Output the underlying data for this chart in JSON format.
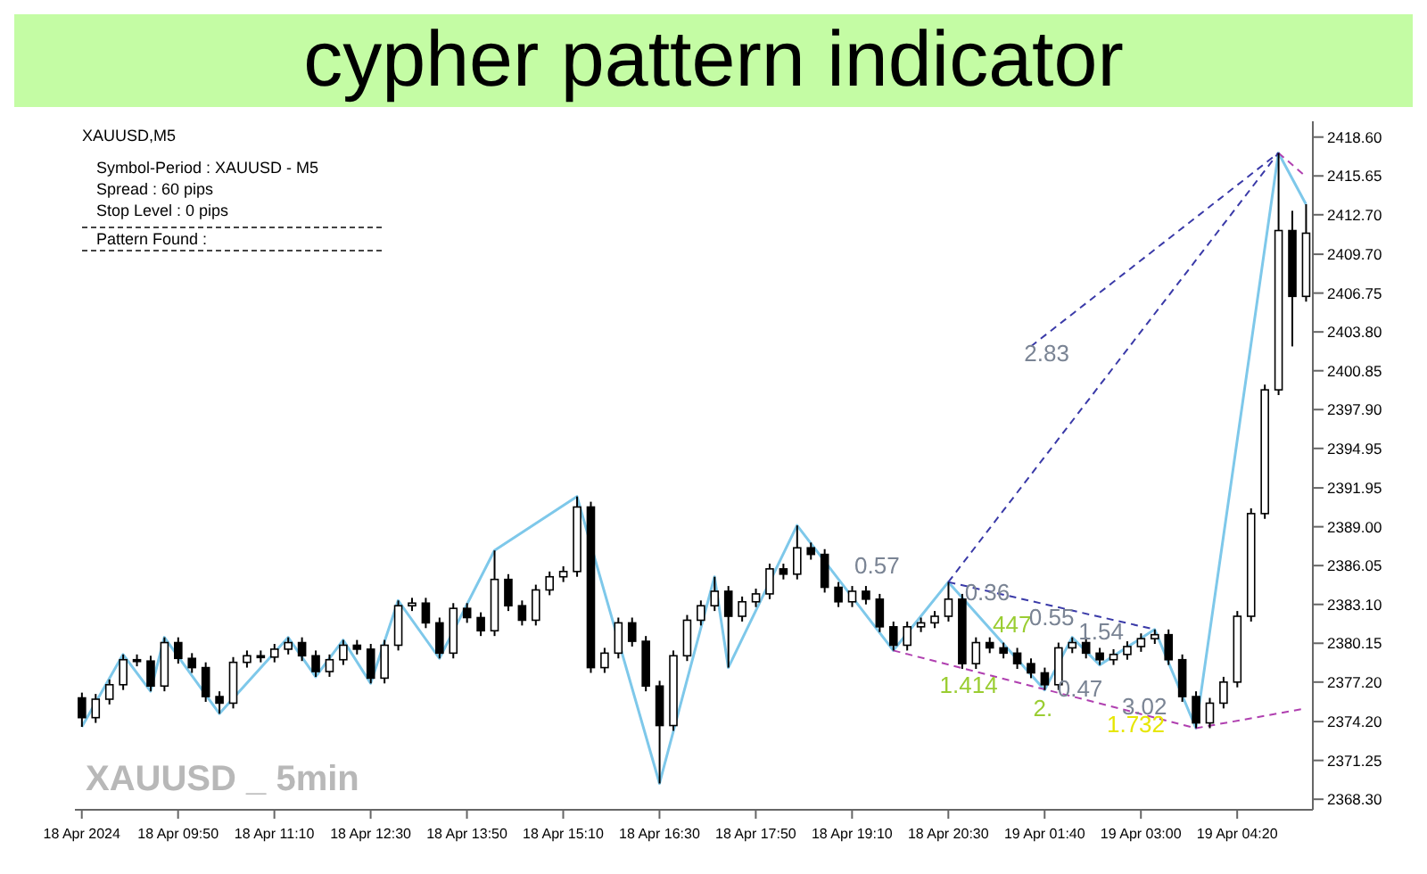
{
  "chart_data": {
    "type": "candlestick",
    "title": "cypher pattern indicator",
    "annotations": [
      "XAUUSD,M5",
      "Symbol-Period : XAUUSD - M5",
      "Spread : 60 pips",
      "Stop Level : 0 pips",
      "Pattern Found :",
      "XAUUSD _ 5min",
      "2.83",
      "0.57",
      "0.36",
      "447",
      "0.55",
      "1.54",
      "1.414",
      "0.47",
      "2.",
      "3.02",
      "1.732"
    ],
    "categories": [
      "18 Apr 2024",
      null,
      null,
      null,
      null,
      null,
      null,
      "18 Apr 09:50",
      null,
      null,
      null,
      null,
      null,
      null,
      "18 Apr 11:10",
      null,
      null,
      null,
      null,
      null,
      null,
      "18 Apr 12:30",
      null,
      null,
      null,
      null,
      null,
      null,
      "18 Apr 13:50",
      null,
      null,
      null,
      null,
      null,
      null,
      "18 Apr 15:10",
      null,
      null,
      null,
      null,
      null,
      null,
      "18 Apr 16:30",
      null,
      null,
      null,
      null,
      null,
      null,
      "18 Apr 17:50",
      null,
      null,
      null,
      null,
      null,
      null,
      "18 Apr 19:10",
      null,
      null,
      null,
      null,
      null,
      null,
      "18 Apr 20:30",
      null,
      null,
      null,
      null,
      null,
      null,
      "19 Apr 01:40",
      null,
      null,
      null,
      null,
      null,
      null,
      "19 Apr 03:00",
      null,
      null,
      null,
      null,
      null,
      null,
      "19 Apr 04:20",
      null,
      null,
      null,
      null,
      null
    ],
    "ohlc": [
      [
        2376.0,
        2376.4,
        2373.8,
        2374.5
      ],
      [
        2374.5,
        2376.3,
        2374.1,
        2375.9
      ],
      [
        2375.9,
        2377.4,
        2375.5,
        2377.0
      ],
      [
        2377.0,
        2379.3,
        2376.6,
        2378.9
      ],
      [
        2378.9,
        2379.3,
        2378.4,
        2378.8
      ],
      [
        2378.8,
        2379.2,
        2376.5,
        2376.9
      ],
      [
        2376.9,
        2380.6,
        2376.5,
        2380.2
      ],
      [
        2380.2,
        2380.6,
        2378.6,
        2379.0
      ],
      [
        2379.0,
        2379.4,
        2377.9,
        2378.3
      ],
      [
        2378.3,
        2378.7,
        2375.7,
        2376.1
      ],
      [
        2376.1,
        2376.5,
        2374.8,
        2375.6
      ],
      [
        2375.6,
        2379.1,
        2375.2,
        2378.7
      ],
      [
        2378.7,
        2379.6,
        2378.3,
        2379.2
      ],
      [
        2379.2,
        2379.6,
        2378.7,
        2379.1
      ],
      [
        2379.1,
        2380.1,
        2378.7,
        2379.7
      ],
      [
        2379.7,
        2380.6,
        2379.3,
        2380.2
      ],
      [
        2380.2,
        2380.6,
        2378.8,
        2379.2
      ],
      [
        2379.2,
        2379.6,
        2377.6,
        2378.0
      ],
      [
        2378.0,
        2379.3,
        2377.6,
        2378.9
      ],
      [
        2378.9,
        2380.4,
        2378.5,
        2380.0
      ],
      [
        2380.0,
        2380.4,
        2379.3,
        2379.7
      ],
      [
        2379.7,
        2380.1,
        2377.1,
        2377.5
      ],
      [
        2377.5,
        2380.4,
        2377.1,
        2380.0
      ],
      [
        2380.0,
        2383.4,
        2379.6,
        2383.0
      ],
      [
        2383.0,
        2383.6,
        2382.6,
        2383.2
      ],
      [
        2383.2,
        2383.6,
        2381.3,
        2381.7
      ],
      [
        2381.7,
        2382.1,
        2379.0,
        2379.4
      ],
      [
        2379.4,
        2383.2,
        2379.0,
        2382.8
      ],
      [
        2382.8,
        2383.2,
        2381.7,
        2382.1
      ],
      [
        2382.1,
        2382.5,
        2380.7,
        2381.1
      ],
      [
        2381.1,
        2387.2,
        2380.7,
        2385.0
      ],
      [
        2385.0,
        2385.4,
        2382.6,
        2383.0
      ],
      [
        2383.0,
        2383.4,
        2381.5,
        2381.9
      ],
      [
        2381.9,
        2384.6,
        2381.5,
        2384.2
      ],
      [
        2384.2,
        2385.6,
        2383.8,
        2385.2
      ],
      [
        2385.2,
        2386.0,
        2384.8,
        2385.6
      ],
      [
        2385.6,
        2391.3,
        2385.2,
        2390.5
      ],
      [
        2390.5,
        2390.9,
        2377.9,
        2378.3
      ],
      [
        2378.3,
        2379.8,
        2377.9,
        2379.4
      ],
      [
        2379.4,
        2382.1,
        2379.0,
        2381.7
      ],
      [
        2381.7,
        2382.1,
        2379.9,
        2380.3
      ],
      [
        2380.3,
        2380.7,
        2376.5,
        2376.9
      ],
      [
        2376.9,
        2377.3,
        2369.5,
        2373.9
      ],
      [
        2373.9,
        2379.6,
        2373.5,
        2379.2
      ],
      [
        2379.2,
        2382.3,
        2378.8,
        2381.9
      ],
      [
        2381.9,
        2383.4,
        2381.5,
        2383.0
      ],
      [
        2383.0,
        2385.2,
        2382.6,
        2384.1
      ],
      [
        2384.1,
        2384.5,
        2378.3,
        2382.2
      ],
      [
        2382.2,
        2383.7,
        2381.8,
        2383.3
      ],
      [
        2383.3,
        2384.3,
        2382.9,
        2383.9
      ],
      [
        2383.9,
        2386.2,
        2383.5,
        2385.8
      ],
      [
        2385.8,
        2386.2,
        2385.0,
        2385.4
      ],
      [
        2385.4,
        2389.1,
        2385.0,
        2387.4
      ],
      [
        2387.4,
        2387.8,
        2386.5,
        2386.9
      ],
      [
        2386.9,
        2387.3,
        2384.0,
        2384.4
      ],
      [
        2384.4,
        2384.8,
        2382.9,
        2383.3
      ],
      [
        2383.3,
        2384.5,
        2382.9,
        2384.1
      ],
      [
        2384.1,
        2384.5,
        2383.1,
        2383.5
      ],
      [
        2383.5,
        2383.9,
        2381.0,
        2381.4
      ],
      [
        2381.4,
        2381.8,
        2379.6,
        2380.0
      ],
      [
        2380.0,
        2381.8,
        2379.6,
        2381.4
      ],
      [
        2381.4,
        2382.1,
        2381.0,
        2381.7
      ],
      [
        2381.7,
        2382.6,
        2381.3,
        2382.2
      ],
      [
        2382.2,
        2384.8,
        2381.8,
        2383.5
      ],
      [
        2383.5,
        2383.9,
        2378.2,
        2378.6
      ],
      [
        2378.6,
        2380.6,
        2378.2,
        2380.2
      ],
      [
        2380.2,
        2380.6,
        2379.4,
        2379.8
      ],
      [
        2379.8,
        2380.2,
        2379.0,
        2379.4
      ],
      [
        2379.4,
        2379.8,
        2378.2,
        2378.6
      ],
      [
        2378.6,
        2379.0,
        2377.5,
        2377.9
      ],
      [
        2377.9,
        2378.3,
        2376.6,
        2377.0
      ],
      [
        2377.0,
        2380.2,
        2376.6,
        2379.8
      ],
      [
        2379.8,
        2380.6,
        2379.4,
        2380.2
      ],
      [
        2380.2,
        2380.6,
        2379.0,
        2379.4
      ],
      [
        2379.4,
        2379.8,
        2378.5,
        2378.9
      ],
      [
        2378.9,
        2379.7,
        2378.5,
        2379.3
      ],
      [
        2379.3,
        2380.3,
        2378.9,
        2379.9
      ],
      [
        2379.9,
        2380.9,
        2379.5,
        2380.5
      ],
      [
        2380.5,
        2381.2,
        2380.1,
        2380.8
      ],
      [
        2380.8,
        2381.2,
        2378.5,
        2378.9
      ],
      [
        2378.9,
        2379.3,
        2375.7,
        2376.1
      ],
      [
        2376.1,
        2376.5,
        2373.7,
        2374.1
      ],
      [
        2374.1,
        2376.0,
        2373.7,
        2375.6
      ],
      [
        2375.6,
        2377.6,
        2375.2,
        2377.2
      ],
      [
        2377.2,
        2382.6,
        2376.8,
        2382.2
      ],
      [
        2382.2,
        2390.4,
        2381.8,
        2390.0
      ],
      [
        2390.0,
        2399.8,
        2389.6,
        2399.4
      ],
      [
        2399.4,
        2417.4,
        2399.0,
        2411.5
      ],
      [
        2411.5,
        2413.0,
        2402.7,
        2406.5
      ],
      [
        2406.5,
        2413.5,
        2406.1,
        2411.3
      ]
    ],
    "series": [
      {
        "type": "line",
        "color": "#7ec8ea",
        "line_style": "solid",
        "values": [
          2373.8,
          null,
          null,
          2379.3,
          null,
          2376.5,
          2380.6,
          null,
          null,
          null,
          2374.8,
          null,
          null,
          null,
          null,
          2380.6,
          null,
          2377.6,
          null,
          2380.4,
          null,
          2377.1,
          null,
          2383.4,
          null,
          null,
          2379.0,
          null,
          null,
          null,
          2387.2,
          null,
          null,
          null,
          null,
          null,
          2391.3,
          null,
          null,
          null,
          null,
          null,
          2369.5,
          null,
          null,
          null,
          2385.2,
          2378.3,
          null,
          null,
          null,
          null,
          2389.1,
          null,
          null,
          null,
          null,
          null,
          null,
          2379.6,
          null,
          null,
          null,
          2384.8,
          null,
          null,
          null,
          null,
          null,
          null,
          2376.6,
          null,
          2380.6,
          null,
          2378.5,
          null,
          null,
          null,
          2381.2,
          null,
          null,
          2373.7,
          null,
          null,
          null,
          null,
          null,
          2417.4,
          null,
          2413.5
        ]
      },
      {
        "type": "line",
        "color": "#3a3aa8",
        "line_style": "dashed",
        "values": [
          null,
          null,
          null,
          null,
          null,
          null,
          null,
          null,
          null,
          null,
          null,
          null,
          null,
          null,
          null,
          null,
          null,
          null,
          null,
          null,
          null,
          null,
          null,
          null,
          null,
          null,
          null,
          null,
          null,
          null,
          null,
          null,
          null,
          null,
          null,
          null,
          null,
          null,
          null,
          null,
          null,
          null,
          null,
          null,
          null,
          null,
          null,
          null,
          null,
          null,
          null,
          null,
          null,
          null,
          null,
          null,
          null,
          null,
          null,
          null,
          null,
          null,
          null,
          null,
          null,
          null,
          null,
          null,
          null,
          2402.7,
          null,
          null,
          null,
          null,
          null,
          null,
          null,
          null,
          null,
          null,
          null,
          null,
          null,
          null,
          null,
          null,
          null,
          2417.4,
          null,
          null
        ]
      },
      {
        "type": "line",
        "color": "#3a3aa8",
        "line_style": "dashed",
        "values": [
          null,
          null,
          null,
          null,
          null,
          null,
          null,
          null,
          null,
          null,
          null,
          null,
          null,
          null,
          null,
          null,
          null,
          null,
          null,
          null,
          null,
          null,
          null,
          null,
          null,
          null,
          null,
          null,
          null,
          null,
          null,
          null,
          null,
          null,
          null,
          null,
          null,
          null,
          null,
          null,
          null,
          null,
          null,
          null,
          null,
          null,
          null,
          null,
          null,
          null,
          null,
          null,
          null,
          null,
          null,
          null,
          null,
          null,
          null,
          null,
          null,
          null,
          null,
          2384.8,
          null,
          null,
          null,
          null,
          null,
          null,
          null,
          null,
          null,
          null,
          null,
          null,
          null,
          null,
          null,
          null,
          null,
          null,
          null,
          null,
          null,
          null,
          null,
          2417.4,
          null,
          null
        ]
      },
      {
        "type": "line",
        "color": "#3a3aa8",
        "line_style": "dashed",
        "values": [
          null,
          null,
          null,
          null,
          null,
          null,
          null,
          null,
          null,
          null,
          null,
          null,
          null,
          null,
          null,
          null,
          null,
          null,
          null,
          null,
          null,
          null,
          null,
          null,
          null,
          null,
          null,
          null,
          null,
          null,
          null,
          null,
          null,
          null,
          null,
          null,
          null,
          null,
          null,
          null,
          null,
          null,
          null,
          null,
          null,
          null,
          null,
          null,
          null,
          null,
          null,
          null,
          null,
          null,
          null,
          null,
          null,
          null,
          null,
          null,
          null,
          null,
          null,
          2384.8,
          null,
          null,
          null,
          null,
          null,
          null,
          null,
          null,
          null,
          null,
          null,
          null,
          null,
          null,
          2381.2,
          null,
          null,
          null,
          null,
          null,
          null,
          null,
          null,
          null,
          null,
          null
        ]
      },
      {
        "type": "line",
        "color": "#b040b0",
        "line_style": "dashed",
        "values": [
          null,
          null,
          null,
          null,
          null,
          null,
          null,
          null,
          null,
          null,
          null,
          null,
          null,
          null,
          null,
          null,
          null,
          null,
          null,
          null,
          null,
          null,
          null,
          null,
          null,
          null,
          null,
          null,
          null,
          null,
          null,
          null,
          null,
          null,
          null,
          null,
          null,
          null,
          null,
          null,
          null,
          null,
          null,
          null,
          null,
          null,
          null,
          null,
          null,
          null,
          null,
          null,
          null,
          null,
          null,
          null,
          null,
          null,
          null,
          2379.6,
          null,
          null,
          null,
          null,
          null,
          null,
          null,
          null,
          null,
          null,
          null,
          null,
          null,
          null,
          null,
          null,
          null,
          null,
          null,
          null,
          null,
          2373.7,
          null,
          null,
          null,
          null,
          null,
          null,
          null,
          2375.2
        ]
      },
      {
        "type": "line",
        "color": "#b040b0",
        "line_style": "dashed",
        "values": [
          null,
          null,
          null,
          null,
          null,
          null,
          null,
          null,
          null,
          null,
          null,
          null,
          null,
          null,
          null,
          null,
          null,
          null,
          null,
          null,
          null,
          null,
          null,
          null,
          null,
          null,
          null,
          null,
          null,
          null,
          null,
          null,
          null,
          null,
          null,
          null,
          null,
          null,
          null,
          null,
          null,
          null,
          null,
          null,
          null,
          null,
          null,
          null,
          null,
          null,
          null,
          null,
          null,
          null,
          null,
          null,
          null,
          null,
          null,
          null,
          null,
          null,
          null,
          null,
          null,
          null,
          null,
          null,
          null,
          null,
          null,
          null,
          null,
          null,
          null,
          null,
          null,
          null,
          null,
          null,
          null,
          null,
          null,
          null,
          null,
          null,
          null,
          2417.4,
          null,
          2415.6
        ]
      }
    ],
    "ylim": [
      2367.5,
      2419.8
    ],
    "yticks": [
      {
        "value": 2368.3,
        "label": "2368.30"
      },
      {
        "value": 2371.25,
        "label": "2371.25"
      },
      {
        "value": 2374.2,
        "label": "2374.20"
      },
      {
        "value": 2377.2,
        "label": "2377.20"
      },
      {
        "value": 2380.15,
        "label": "2380.15"
      },
      {
        "value": 2383.1,
        "label": "2383.10"
      },
      {
        "value": 2386.05,
        "label": "2386.05"
      },
      {
        "value": 2389.0,
        "label": "2389.00"
      },
      {
        "value": 2391.95,
        "label": "2391.95"
      },
      {
        "value": 2394.95,
        "label": "2394.95"
      },
      {
        "value": 2397.9,
        "label": "2397.90"
      },
      {
        "value": 2400.85,
        "label": "2400.85"
      },
      {
        "value": 2403.8,
        "label": "2403.80"
      },
      {
        "value": 2406.75,
        "label": "2406.75"
      },
      {
        "value": 2409.7,
        "label": "2409.70"
      },
      {
        "value": 2412.7,
        "label": "2412.70"
      },
      {
        "value": 2415.65,
        "label": "2415.65"
      },
      {
        "value": 2418.6,
        "label": "2418.60"
      }
    ]
  }
}
